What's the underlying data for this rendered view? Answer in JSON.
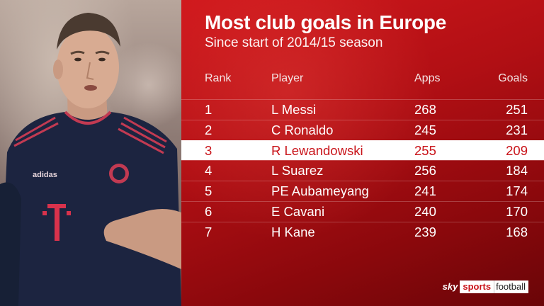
{
  "title": "Most club goals in Europe",
  "subtitle": "Since start of 2014/15 season",
  "headers": {
    "rank": "Rank",
    "player": "Player",
    "apps": "Apps",
    "goals": "Goals"
  },
  "rows": [
    {
      "rank": "1",
      "player": "L Messi",
      "apps": "268",
      "goals": "251"
    },
    {
      "rank": "2",
      "player": "C Ronaldo",
      "apps": "245",
      "goals": "231"
    },
    {
      "rank": "3",
      "player": "R Lewandowski",
      "apps": "255",
      "goals": "209"
    },
    {
      "rank": "4",
      "player": "L Suarez",
      "apps": "256",
      "goals": "184"
    },
    {
      "rank": "5",
      "player": "PE Aubameyang",
      "apps": "241",
      "goals": "174"
    },
    {
      "rank": "6",
      "player": "E Cavani",
      "apps": "240",
      "goals": "170"
    },
    {
      "rank": "7",
      "player": "H Kane",
      "apps": "239",
      "goals": "168"
    }
  ],
  "highlighted_rank": "3",
  "logo": {
    "sky": "sky",
    "sports": "sports",
    "football": "football"
  },
  "colors": {
    "panel_red": "#c9141a",
    "highlight_bg": "#ffffff",
    "highlight_text": "#c9141a",
    "kit_navy": "#1c2440"
  },
  "photo": {
    "icon": "player-photo",
    "kit_sponsor": "T",
    "kit_brand": "adidas"
  }
}
